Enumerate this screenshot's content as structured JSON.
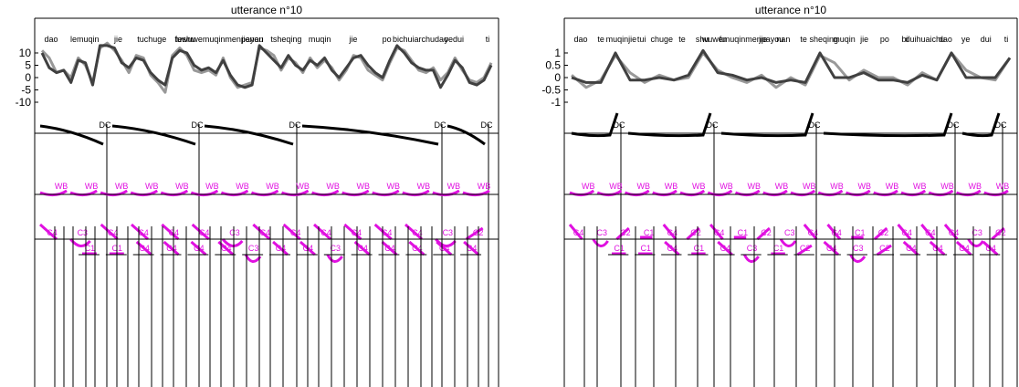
{
  "chart_data": [
    {
      "type": "line",
      "title": "utterance n°10",
      "yticks": [
        10,
        5,
        0,
        -5,
        -10
      ],
      "ylim": [
        -15,
        15
      ],
      "syllables": [
        "dao",
        "lemuqin",
        "jie",
        "tuchuge",
        "teshu",
        "fuwuwemuqinmenpayou",
        "jienan",
        "tsheqing",
        "muqin",
        "jie",
        "po",
        "bichuiarchudao",
        "yedui",
        "ti"
      ],
      "series": [
        {
          "name": "",
          "color": "#999999",
          "values": [
            11,
            8,
            2,
            3,
            0,
            8,
            5,
            -2,
            12,
            14,
            11,
            7,
            2,
            9,
            8,
            1,
            -2,
            -6,
            9,
            12,
            9,
            3,
            2,
            3,
            1,
            8,
            0,
            -4,
            -3,
            -2,
            12,
            11,
            9,
            3,
            8,
            6,
            2,
            8,
            4,
            7,
            4,
            -1,
            3,
            9,
            8,
            3,
            1,
            -1,
            6,
            12,
            11,
            7,
            3,
            2,
            4,
            -1,
            2,
            8,
            3,
            -1,
            -2,
            0,
            6
          ]
        },
        {
          "name": "",
          "color": "#404040",
          "values": [
            10,
            4,
            2,
            3,
            -2,
            7,
            6,
            -3,
            13,
            13,
            12,
            6,
            4,
            8,
            7,
            2,
            -1,
            -3,
            8,
            11,
            10,
            5,
            3,
            4,
            2,
            7,
            1,
            -3,
            -4,
            -3,
            13,
            10,
            7,
            4,
            9,
            5,
            3,
            7,
            5,
            8,
            3,
            0,
            4,
            8,
            9,
            5,
            2,
            0,
            7,
            13,
            10,
            6,
            4,
            3,
            3,
            -4,
            1,
            7,
            4,
            -2,
            -3,
            -1,
            5
          ]
        }
      ],
      "boundary_labels": [
        "DC",
        "DC",
        "DC",
        "DC",
        "DC"
      ],
      "wb_labels": [
        "WB",
        "WB",
        "WB",
        "WB",
        "WB",
        "WB",
        "WB",
        "WB",
        "WB",
        "WB",
        "WB",
        "WB",
        "WB",
        "WB",
        "WB"
      ],
      "tone_row1": [
        "C4",
        "C3",
        "C4",
        "C4",
        "C4",
        "C4",
        "C3",
        "C4",
        "C4",
        "C4",
        "C4",
        "C4",
        "C4",
        "C3",
        "C2"
      ],
      "tone_row2": [
        "C1",
        "C1",
        "C4",
        "C4",
        "C4",
        "C4",
        "C3",
        "C4",
        "C4",
        "C3",
        "C4",
        "C4",
        "C4",
        "C4",
        "C4"
      ]
    },
    {
      "type": "line",
      "title": "utterance n°10",
      "yticks": [
        1,
        0.5,
        0,
        -0.5,
        -1
      ],
      "ylim": [
        -1.5,
        1.5
      ],
      "syllables": [
        "dao",
        "te",
        "muqinjie",
        "tui",
        "chuge",
        "te",
        "shu",
        "fu",
        "wuwemuqinmenpayou",
        "jie",
        "nan",
        "te",
        "sheqing",
        "muqin",
        "jie",
        "po",
        "bi",
        "duihuaichu",
        "dao",
        "ye",
        "dui",
        "ti"
      ],
      "series": [
        {
          "name": "",
          "color": "#999999",
          "values": [
            0.1,
            -0.4,
            -0.1,
            0.9,
            0.2,
            -0.2,
            0.1,
            -0.1,
            0.0,
            1.0,
            0.3,
            0.0,
            -0.2,
            0.1,
            -0.4,
            0.0,
            -0.3,
            0.9,
            0.6,
            -0.1,
            0.3,
            0.0,
            0.0,
            -0.3,
            0.2,
            -0.1,
            1.0,
            0.3,
            0.0,
            -0.1,
            0.8
          ]
        },
        {
          "name": "",
          "color": "#404040",
          "values": [
            0.0,
            -0.2,
            -0.2,
            1.0,
            -0.1,
            -0.1,
            0.0,
            -0.1,
            0.1,
            1.1,
            0.2,
            0.1,
            -0.1,
            0.0,
            -0.2,
            -0.1,
            -0.2,
            1.0,
            0.0,
            0.0,
            0.2,
            -0.1,
            -0.1,
            -0.2,
            0.1,
            -0.1,
            1.0,
            0.0,
            0.0,
            0.0,
            0.8
          ]
        }
      ],
      "boundary_labels": [
        "DC",
        "DC",
        "DC",
        "DC",
        "DC"
      ],
      "wb_labels": [
        "WB",
        "WB",
        "WB",
        "WB",
        "WB",
        "WB",
        "WB",
        "WB",
        "WB",
        "WB",
        "WB",
        "WB",
        "WB",
        "WB",
        "WB",
        "WB"
      ],
      "tone_row1": [
        "C4",
        "C3",
        "C2",
        "C1",
        "C4",
        "C2",
        "C4",
        "C1",
        "C2",
        "C3",
        "C4",
        "C4",
        "C1",
        "C2",
        "C4",
        "C4",
        "C4",
        "C3",
        "C2"
      ],
      "tone_row2": [
        "C1",
        "C1",
        "C4",
        "C1",
        "C4",
        "C3",
        "C1",
        "C2",
        "C4",
        "C3",
        "C2",
        "C4",
        "C4",
        "C4",
        "C4"
      ]
    }
  ]
}
